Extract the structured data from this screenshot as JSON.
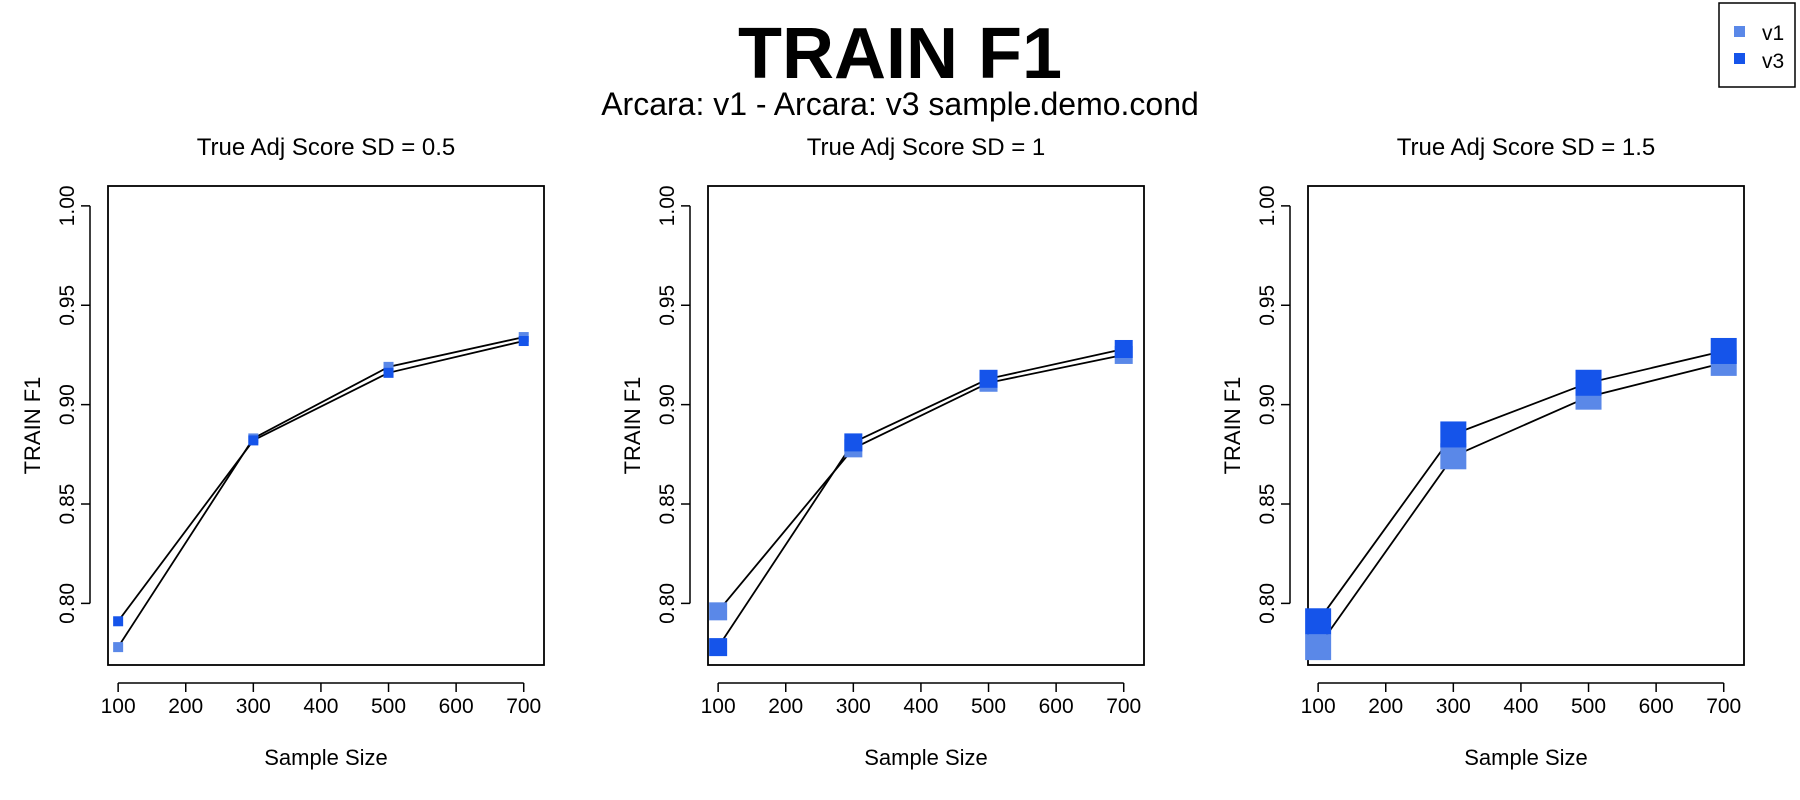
{
  "title": "TRAIN F1",
  "subtitle": "Arcara: v1 - Arcara: v3 sample.demo.cond",
  "legend": {
    "placement": "top-right",
    "items": [
      {
        "label": "v1",
        "color": "#5a88e8"
      },
      {
        "label": "v3",
        "color": "#1554ea"
      }
    ]
  },
  "chart_data": [
    {
      "type": "line",
      "title": "True Adj Score SD = 0.5",
      "xlabel": "Sample Size",
      "ylabel": "TRAIN F1",
      "x": [
        100,
        300,
        500,
        700
      ],
      "xticks": [
        "100",
        "200",
        "300",
        "400",
        "500",
        "600",
        "700"
      ],
      "yticks": [
        "0.80",
        "0.85",
        "0.90",
        "0.95",
        "1.00"
      ],
      "xlim": [
        85,
        730
      ],
      "ylim": [
        0.769,
        1.01
      ],
      "grid": false,
      "series": [
        {
          "name": "v1",
          "color": "#5a88e8",
          "values": [
            0.778,
            0.883,
            0.919,
            0.934
          ]
        },
        {
          "name": "v3",
          "color": "#1554ea",
          "values": [
            0.791,
            0.882,
            0.916,
            0.932
          ]
        }
      ]
    },
    {
      "type": "line",
      "title": "True Adj Score SD = 1",
      "xlabel": "Sample Size",
      "ylabel": "TRAIN F1",
      "x": [
        100,
        300,
        500,
        700
      ],
      "xticks": [
        "100",
        "200",
        "300",
        "400",
        "500",
        "600",
        "700"
      ],
      "yticks": [
        "0.80",
        "0.85",
        "0.90",
        "0.95",
        "1.00"
      ],
      "xlim": [
        85,
        730
      ],
      "ylim": [
        0.769,
        1.01
      ],
      "grid": false,
      "series": [
        {
          "name": "v1",
          "color": "#5a88e8",
          "values": [
            0.796,
            0.878,
            0.911,
            0.925
          ]
        },
        {
          "name": "v3",
          "color": "#1554ea",
          "values": [
            0.778,
            0.881,
            0.913,
            0.928
          ]
        }
      ]
    },
    {
      "type": "line",
      "title": "True Adj Score SD = 1.5",
      "xlabel": "Sample Size",
      "ylabel": "TRAIN F1",
      "x": [
        100,
        300,
        500,
        700
      ],
      "xticks": [
        "100",
        "200",
        "300",
        "400",
        "500",
        "600",
        "700"
      ],
      "yticks": [
        "0.80",
        "0.85",
        "0.90",
        "0.95",
        "1.00"
      ],
      "xlim": [
        85,
        730
      ],
      "ylim": [
        0.769,
        1.01
      ],
      "grid": false,
      "series": [
        {
          "name": "v1",
          "color": "#5a88e8",
          "values": [
            0.778,
            0.874,
            0.904,
            0.921
          ]
        },
        {
          "name": "v3",
          "color": "#1554ea",
          "values": [
            0.791,
            0.885,
            0.911,
            0.927
          ]
        }
      ]
    }
  ]
}
